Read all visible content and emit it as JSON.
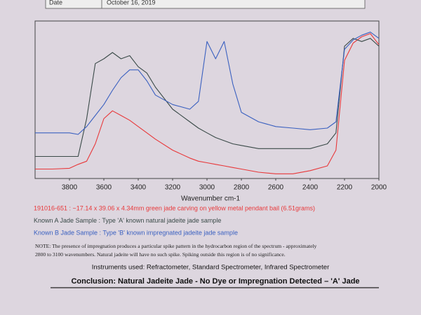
{
  "header": {
    "date_label": "Date",
    "date": "October 16, 2019"
  },
  "chart_data": {
    "type": "line",
    "x_label": "Wavenumber cm-1",
    "x": [
      4000,
      3900,
      3800,
      3750,
      3700,
      3650,
      3600,
      3550,
      3500,
      3450,
      3400,
      3350,
      3300,
      3200,
      3100,
      3050,
      3000,
      2950,
      2900,
      2850,
      2800,
      2700,
      2600,
      2500,
      2400,
      2300,
      2250,
      2200,
      2150,
      2100,
      2050,
      2000
    ],
    "xlim": [
      4000,
      2000
    ],
    "xticks": [
      3800,
      3600,
      3400,
      3200,
      3000,
      2800,
      2600,
      2400,
      2200,
      2000
    ],
    "ylim": [
      0,
      100
    ],
    "series": [
      {
        "name": "191016-651 : ~17.14 x 39.06 x 4.34mm green jade carving on yellow metal pendant bail (6.51grams)",
        "color": "#e8383a",
        "values": [
          6,
          6,
          6.5,
          9,
          11,
          22,
          38,
          43,
          40,
          37,
          33,
          29,
          25,
          18,
          13,
          11,
          10,
          9,
          8,
          7,
          6,
          4,
          3,
          3,
          5,
          8,
          18,
          75,
          86,
          90,
          92,
          85
        ]
      },
      {
        "name": "Known A Jade Sample : Type 'A' known natural jadeite jade sample",
        "color": "#3a4a48",
        "values": [
          14,
          14,
          14,
          14,
          38,
          73,
          76,
          80,
          76,
          78,
          71,
          67,
          58,
          44,
          36,
          32,
          29,
          26,
          24,
          22,
          21,
          19,
          19,
          19,
          19,
          22,
          29,
          84,
          89,
          87,
          89,
          84
        ]
      },
      {
        "name": "Known B Jade Sample : Type 'B' known impregnated jadeite jade sample",
        "color": "#3a60c0",
        "values": [
          29,
          29,
          29,
          28,
          33,
          40,
          47,
          56,
          64,
          69,
          69,
          62,
          53,
          47,
          44,
          49,
          87,
          76,
          87,
          60,
          42,
          36,
          33,
          32,
          31,
          32,
          36,
          82,
          88,
          91,
          93,
          89
        ]
      }
    ]
  },
  "note": [
    "NOTE: The presence of impregnation produces a particular spike pattern in the hydrocarbon region of the spectrum - approximately",
    "2800 to 3100 wavenumbers. Natural jadeite will have no such spike. Spiking outside this region is of no significance."
  ],
  "instruments": "Instruments used: Refractometer, Standard Spectrometer, Infrared Spectrometer",
  "conclusion": "Conclusion: Natural Jadeite Jade - No Dye or Impregnation Detected – 'A' Jade"
}
